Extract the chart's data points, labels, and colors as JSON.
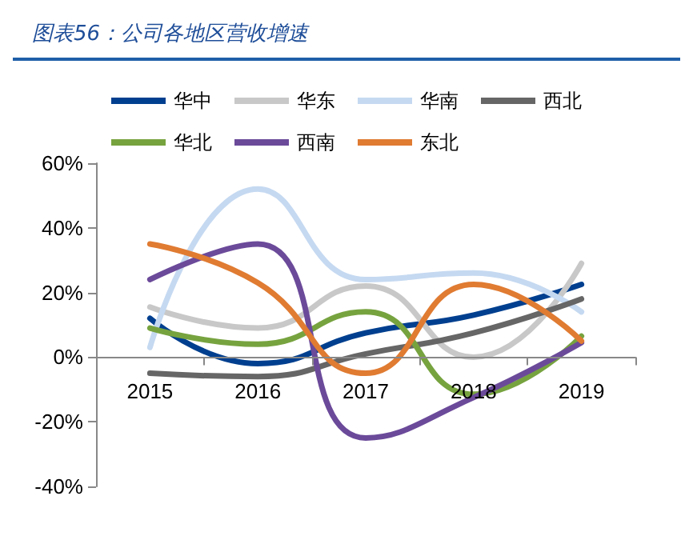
{
  "chart_data": {
    "type": "line",
    "title": "图表56：公司各地区营收增速",
    "categories": [
      "2015",
      "2016",
      "2017",
      "2018",
      "2019"
    ],
    "series": [
      {
        "name": "华中",
        "color": "#003f8f",
        "values": [
          12,
          -2,
          7.5,
          13,
          22.5
        ]
      },
      {
        "name": "华东",
        "color": "#c8c8c8",
        "values": [
          15.5,
          9,
          22,
          0,
          29
        ]
      },
      {
        "name": "华南",
        "color": "#c5d9f1",
        "values": [
          3,
          52,
          24,
          26,
          14
        ]
      },
      {
        "name": "西北",
        "color": "#666666",
        "values": [
          -5,
          -6,
          1,
          7.5,
          18
        ]
      },
      {
        "name": "华北",
        "color": "#77a33f",
        "values": [
          9,
          4,
          14,
          -11.5,
          6.5
        ]
      },
      {
        "name": "西南",
        "color": "#6b4a9a",
        "values": [
          24,
          35,
          -25,
          -12.5,
          4.5
        ]
      },
      {
        "name": "东北",
        "color": "#e07b32",
        "values": [
          35,
          23,
          -5,
          22.5,
          5
        ]
      }
    ],
    "ylim": [
      -40,
      60
    ],
    "yticks": [
      {
        "value": -40,
        "label": "-40%"
      },
      {
        "value": -20,
        "label": "-20%"
      },
      {
        "value": 0,
        "label": "0%"
      },
      {
        "value": 20,
        "label": "20%"
      },
      {
        "value": 40,
        "label": "40%"
      },
      {
        "value": 60,
        "label": "60%"
      }
    ],
    "legend": "top",
    "marker": "none",
    "line_style": "solid"
  }
}
